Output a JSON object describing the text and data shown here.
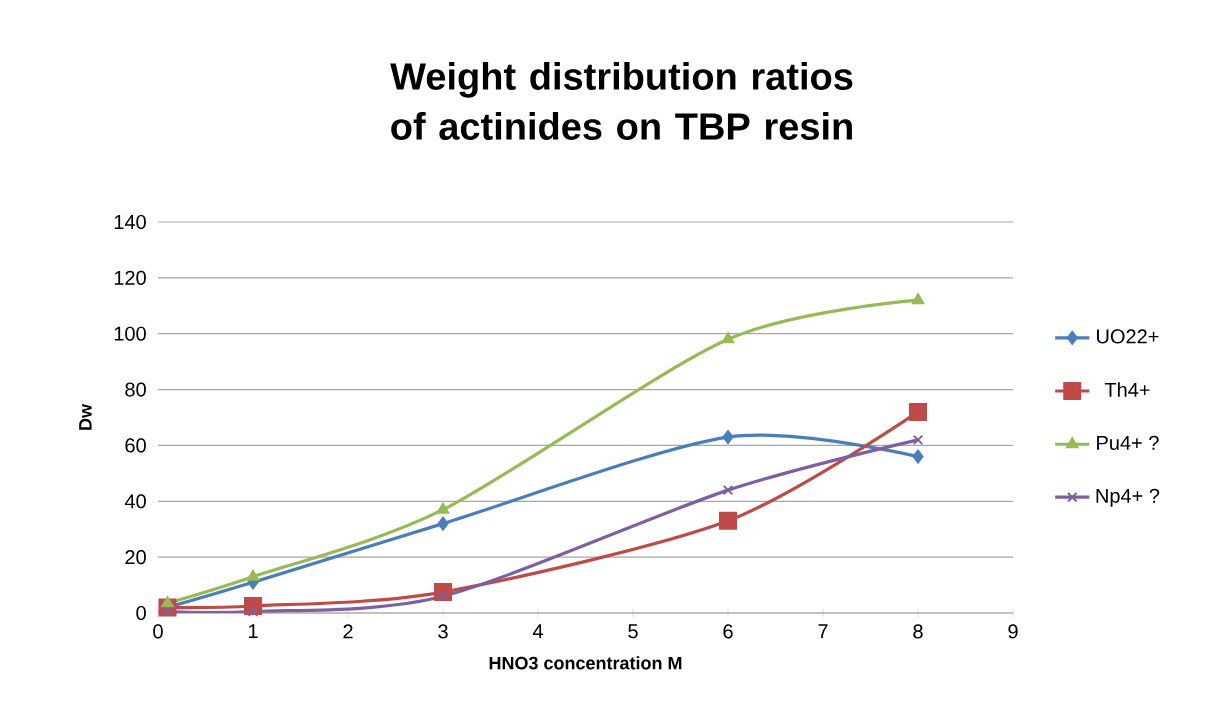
{
  "chart_data": {
    "type": "line",
    "title": "Weight distribution ratios of actinides on TBP resin",
    "xlabel": "HNO3 concentration M",
    "ylabel": "Dw",
    "series": [
      {
        "name": "UO22+",
        "color": "#4a7ebb",
        "marker": "diamond",
        "x": [
          0.1,
          1,
          3,
          6,
          8
        ],
        "values": [
          2,
          11,
          32,
          63,
          56
        ]
      },
      {
        "name": "Th4+",
        "color": "#be4b48",
        "marker": "square",
        "x": [
          0.1,
          1,
          3,
          6,
          8
        ],
        "values": [
          2,
          2.5,
          7.5,
          33,
          72
        ]
      },
      {
        "name": "Pu4+ ?",
        "color": "#98b954",
        "marker": "triangle",
        "x": [
          0.1,
          1,
          3,
          6,
          8
        ],
        "values": [
          3.5,
          13,
          37,
          98,
          112
        ]
      },
      {
        "name": "Np4+ ?",
        "color": "#7d60a0",
        "marker": "cross",
        "x": [
          0.1,
          1,
          3,
          6,
          8
        ],
        "values": [
          0.5,
          0.5,
          6,
          44,
          62
        ]
      }
    ],
    "xlim": [
      0,
      9
    ],
    "xticks": [
      0,
      1,
      2,
      3,
      4,
      5,
      6,
      7,
      8,
      9
    ],
    "ylim": [
      0,
      140
    ],
    "yticks": [
      0,
      20,
      40,
      60,
      80,
      100,
      120,
      140
    ],
    "grid": "y",
    "legend": "right"
  }
}
